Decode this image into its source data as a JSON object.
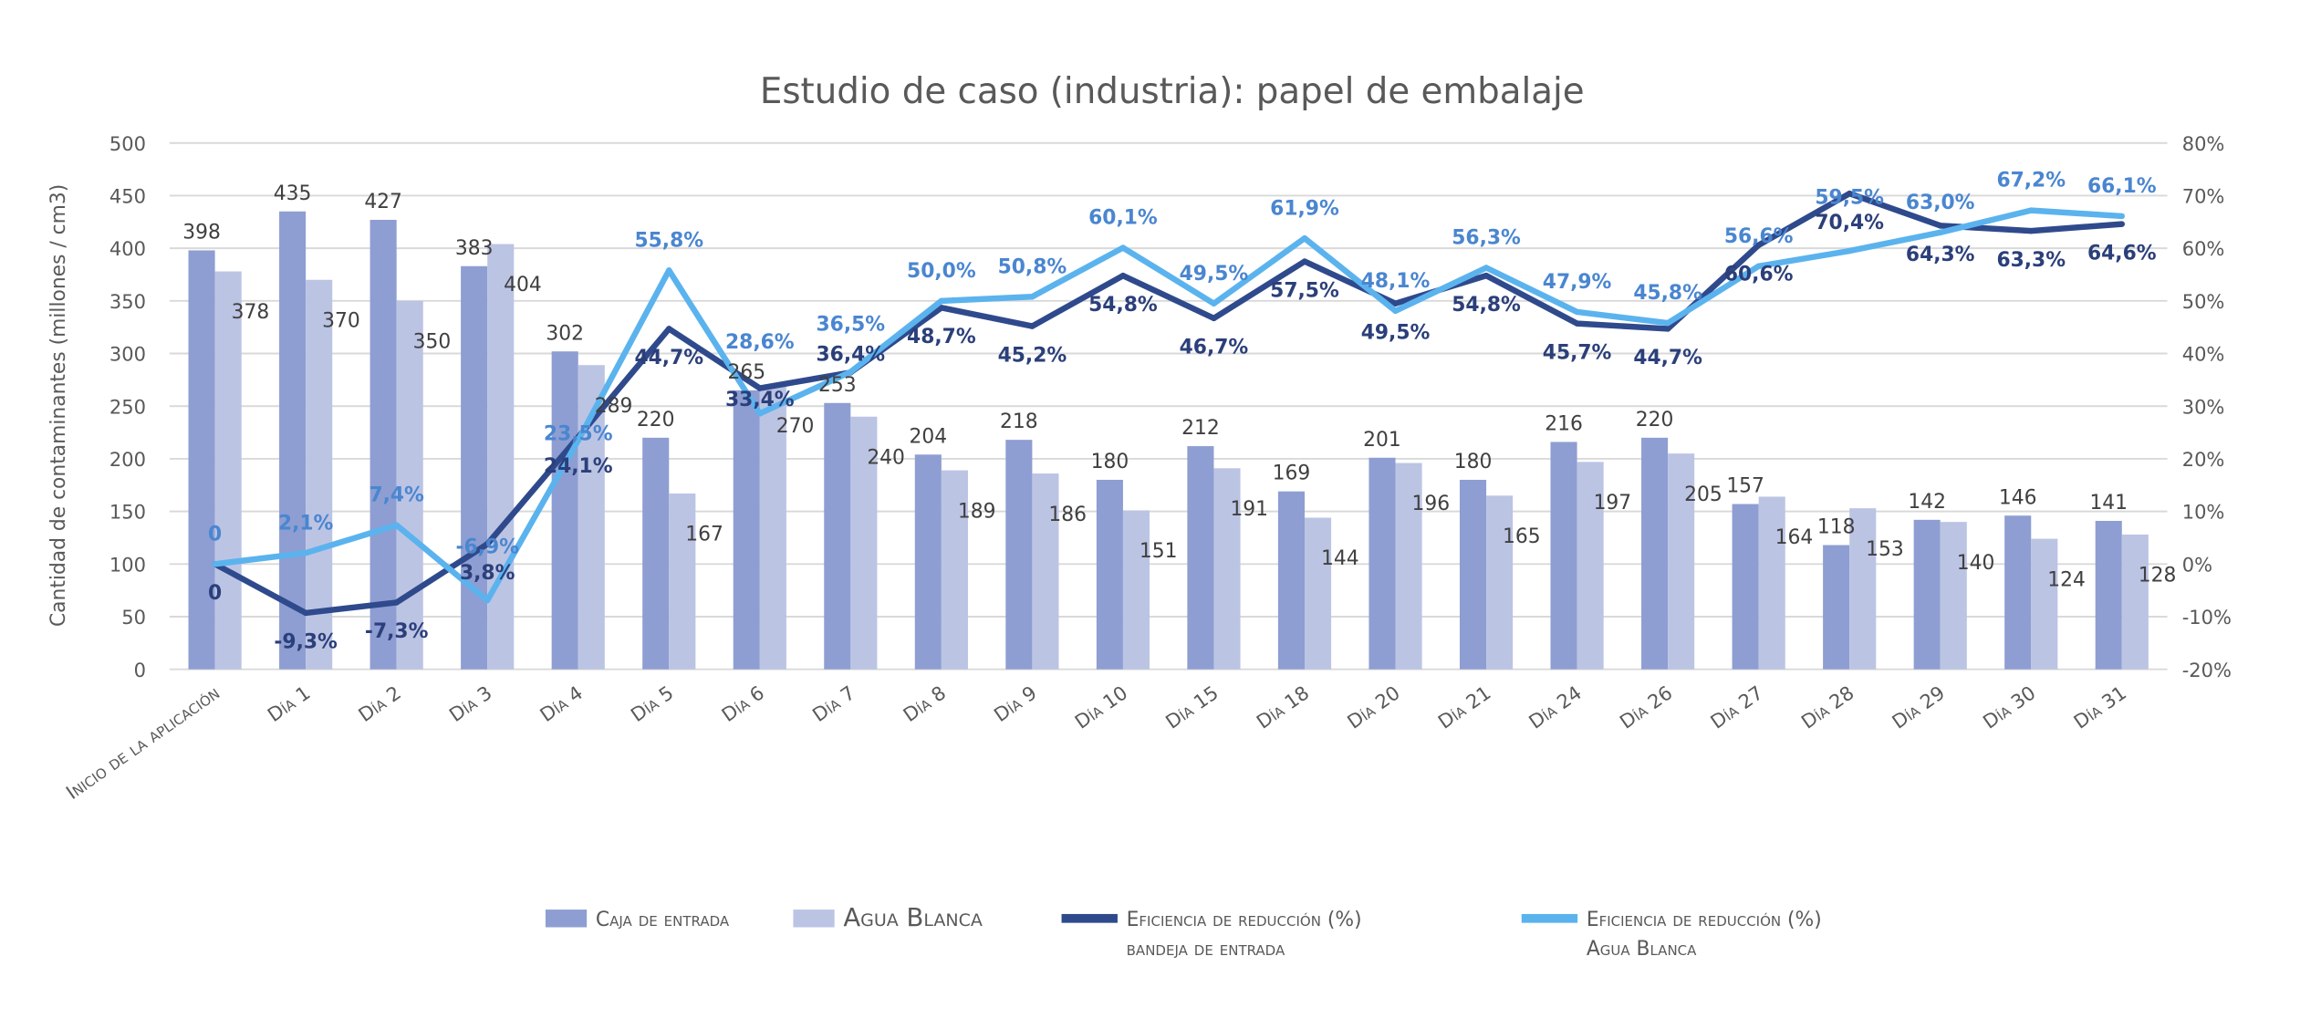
{
  "chart_data": {
    "type": "bar",
    "title": "Estudio de caso (industria): papel de embalaje",
    "ylabel": "Cantidad de contaminantes (millones / cm3)",
    "ylim": [
      0,
      500
    ],
    "yticks": [
      0,
      50,
      100,
      150,
      200,
      250,
      300,
      350,
      400,
      450,
      500
    ],
    "y2lim": [
      -20,
      80
    ],
    "y2ticks": [
      "-20%",
      "-10%",
      "0%",
      "10%",
      "20%",
      "30%",
      "40%",
      "50%",
      "60%",
      "70%",
      "80%"
    ],
    "grid": true,
    "legend": "bottom",
    "categories": [
      "Inicio de la aplicación",
      "Día 1",
      "Día 2",
      "Día 3",
      "Día 4",
      "Día 5",
      "Día 6",
      "Día 7",
      "Día 8",
      "Día 9",
      "Día 10",
      "Día 15",
      "Día 18",
      "Día 20",
      "Día 21",
      "Día 24",
      "Día 26",
      "Día 27",
      "Día 28",
      "Día 29",
      "Día 30",
      "Día 31"
    ],
    "series": [
      {
        "name": "Caja de entrada",
        "type": "bar",
        "axis": "left",
        "color": "#8E9ED2",
        "values": [
          398,
          435,
          427,
          383,
          302,
          220,
          265,
          253,
          204,
          218,
          180,
          212,
          169,
          201,
          180,
          216,
          220,
          157,
          118,
          142,
          146,
          141
        ]
      },
      {
        "name": "Agua Blanca",
        "type": "bar",
        "axis": "left",
        "color": "#BCC4E4",
        "values": [
          378,
          370,
          350,
          404,
          289,
          167,
          270,
          240,
          189,
          186,
          151,
          191,
          144,
          196,
          165,
          197,
          205,
          164,
          153,
          140,
          124,
          128
        ]
      },
      {
        "name": "Eficiencia de reducción (%) bandeja de entrada",
        "type": "line",
        "axis": "right",
        "color": "#2F4A8C",
        "values": [
          0,
          -9.3,
          -7.3,
          3.8,
          24.1,
          44.7,
          33.4,
          36.4,
          48.7,
          45.2,
          54.8,
          46.7,
          57.5,
          49.5,
          54.8,
          45.7,
          44.7,
          60.6,
          70.4,
          64.3,
          63.3,
          64.6
        ],
        "labels": [
          "0",
          "-9,3%",
          "-7,3%",
          "3,8%",
          "24,1%",
          "44,7%",
          "33,4%",
          "36,4%",
          "48,7%",
          "45,2%",
          "54,8%",
          "46,7%",
          "57,5%",
          "49,5%",
          "54,8%",
          "45,7%",
          "44,7%",
          "60,6%",
          "70,4%",
          "64,3%",
          "63,3%",
          "64,6%"
        ]
      },
      {
        "name": "Eficiencia de reducción (%) Agua Blanca",
        "type": "line",
        "axis": "right",
        "color": "#5BB3EE",
        "values": [
          0,
          2.1,
          7.4,
          -6.9,
          23.5,
          55.8,
          28.6,
          36.5,
          50.0,
          50.8,
          60.1,
          49.5,
          61.9,
          48.1,
          56.3,
          47.9,
          45.8,
          56.6,
          59.5,
          63.0,
          67.2,
          66.1
        ],
        "labels": [
          "0",
          "2,1%",
          "7,4%",
          "-6,9%",
          "23,5%",
          "55,8%",
          "28,6%",
          "36,5%",
          "50,0%",
          "50,8%",
          "60,1%",
          "49,5%",
          "61,9%",
          "48,1%",
          "56,3%",
          "47,9%",
          "45,8%",
          "56,6%",
          "59,5%",
          "63,0%",
          "67,2%",
          "66,1%"
        ]
      }
    ]
  }
}
